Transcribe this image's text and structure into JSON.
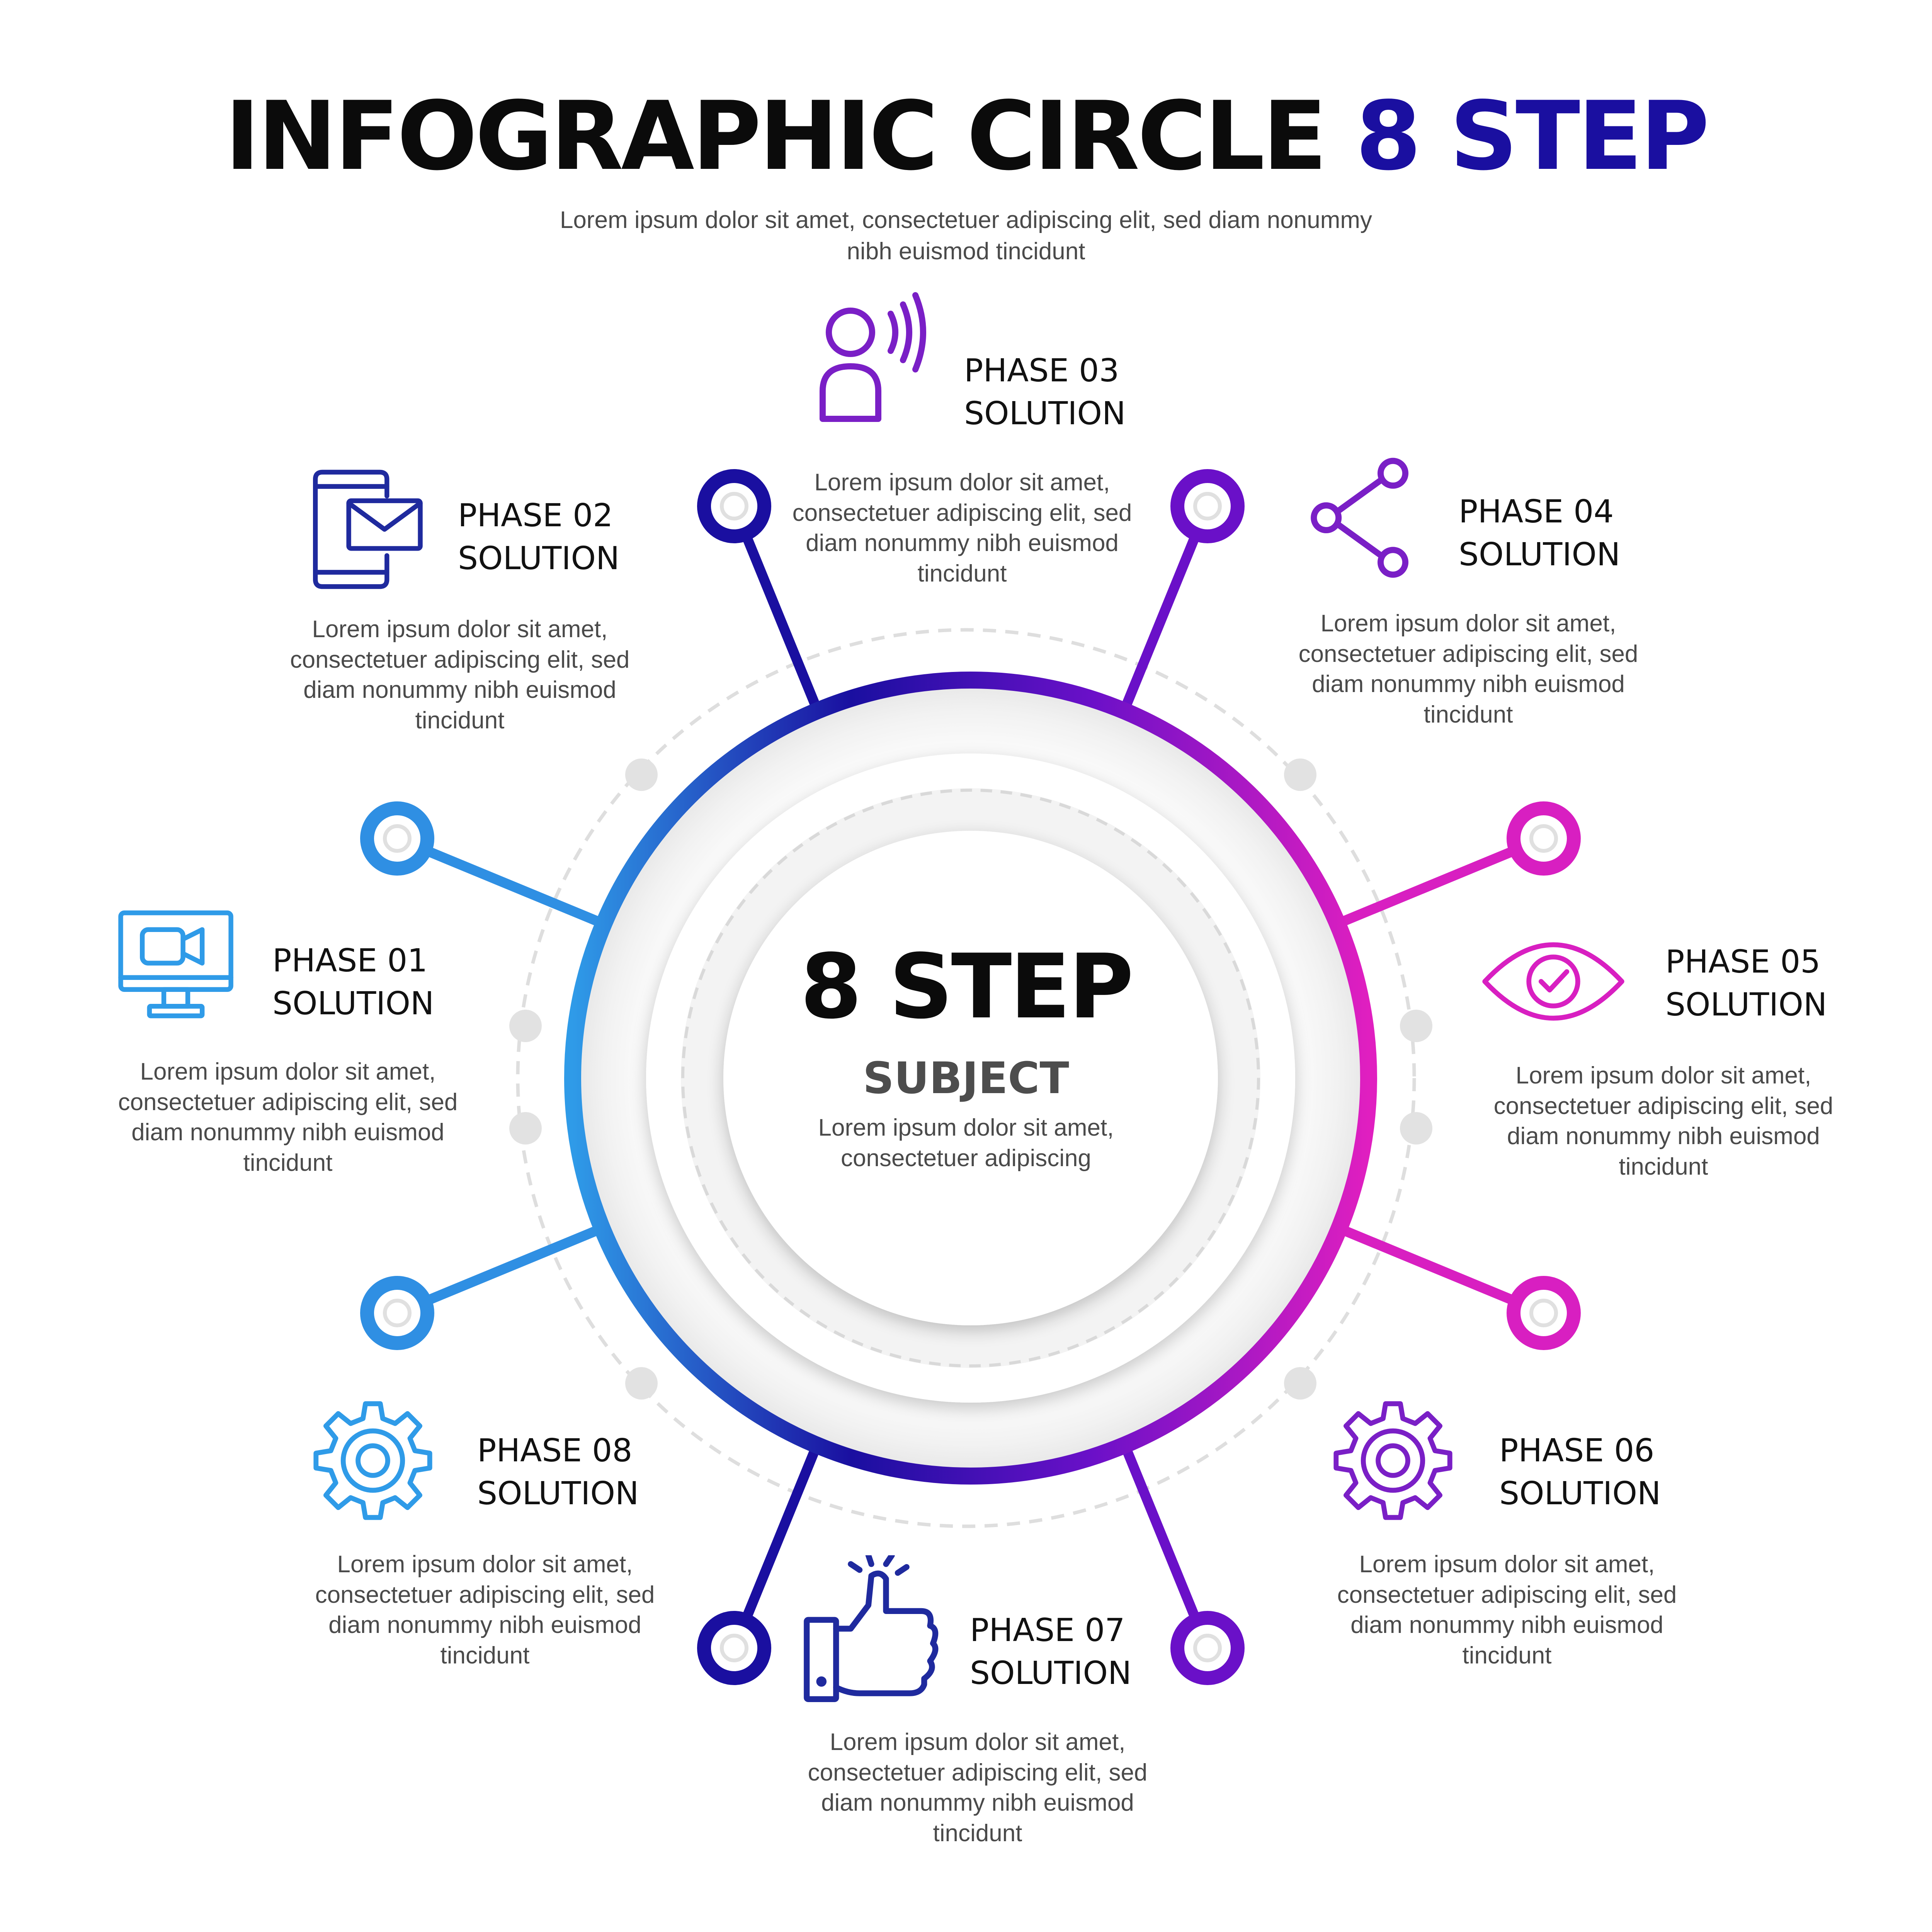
{
  "header": {
    "title_main": "INFOGRAPHIC CIRCLE",
    "title_accent": "8 STEP",
    "subtitle": "Lorem ipsum dolor sit amet, consectetuer adipiscing elit, sed diam nonummy nibh euismod tincidunt"
  },
  "center": {
    "title": "8 STEP",
    "subtitle": "SUBJECT",
    "description": "Lorem ipsum dolor sit amet, consectetuer adipiscing"
  },
  "phases": [
    {
      "label": "PHASE 01",
      "sublabel": "SOLUTION",
      "description": "Lorem ipsum dolor sit amet, consectetuer adipiscing elit, sed diam nonummy nibh euismod tincidunt",
      "icon": "video-monitor-icon",
      "color": "#2f9be8"
    },
    {
      "label": "PHASE 02",
      "sublabel": "SOLUTION",
      "description": "Lorem ipsum dolor sit amet, consectetuer adipiscing elit, sed diam nonummy nibh euismod tincidunt",
      "icon": "phone-mail-icon",
      "color": "#1f2a9e"
    },
    {
      "label": "PHASE 03",
      "sublabel": "SOLUTION",
      "description": "Lorem ipsum dolor sit amet, consectetuer adipiscing elit, sed diam nonummy nibh euismod tincidunt",
      "icon": "user-speaking-icon",
      "color": "#7a1fc6"
    },
    {
      "label": "PHASE 04",
      "sublabel": "SOLUTION",
      "description": "Lorem ipsum dolor sit amet, consectetuer adipiscing elit, sed diam nonummy nibh euismod tincidunt",
      "icon": "share-icon",
      "color": "#7a1fc6"
    },
    {
      "label": "PHASE 05",
      "sublabel": "SOLUTION",
      "description": "Lorem ipsum dolor sit amet, consectetuer adipiscing elit, sed diam nonummy nibh euismod tincidunt",
      "icon": "eye-check-icon",
      "color": "#d81fc1"
    },
    {
      "label": "PHASE 06",
      "sublabel": "SOLUTION",
      "description": "Lorem ipsum dolor sit amet, consectetuer adipiscing elit, sed diam nonummy nibh euismod tincidunt",
      "icon": "gear-icon",
      "color": "#7a1fc6"
    },
    {
      "label": "PHASE 07",
      "sublabel": "SOLUTION",
      "description": "Lorem ipsum dolor sit amet, consectetuer adipiscing elit, sed diam nonummy nibh euismod tincidunt",
      "icon": "thumbs-up-icon",
      "color": "#1f2a9e"
    },
    {
      "label": "PHASE 08",
      "sublabel": "SOLUTION",
      "description": "Lorem ipsum dolor sit amet, consectetuer adipiscing elit, sed diam nonummy nibh euismod tincidunt",
      "icon": "gear-icon",
      "color": "#2f9be8"
    }
  ],
  "colors": {
    "blue": "#2f9be8",
    "navy": "#1a0fa0",
    "purple": "#7a1fc6",
    "magenta": "#e01fc0",
    "dashed_ring": "#dedede",
    "dot_gray": "#e2e2e2"
  }
}
